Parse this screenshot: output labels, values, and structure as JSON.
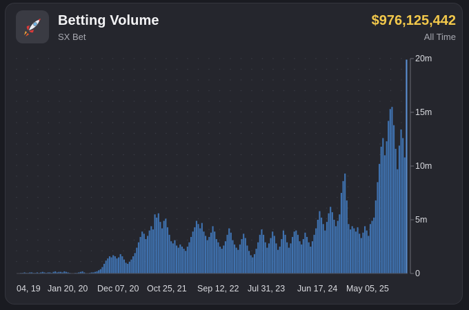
{
  "header": {
    "title": "Betting Volume",
    "subtitle": "SX Bet",
    "total": "$976,125,442",
    "period": "All Time",
    "logo_icon": "rocket-icon"
  },
  "colors": {
    "bar": "#3f72b0",
    "bar_highlight": "#5a8fd2",
    "accent": "#f2c84b"
  },
  "chart_data": {
    "type": "bar",
    "title": "Betting Volume",
    "ylabel": "",
    "xlabel": "",
    "ylim": [
      0,
      20000000
    ],
    "grid": "dotted",
    "y_ticks": [
      "0",
      "5m",
      "10m",
      "15m",
      "20m"
    ],
    "y_tick_values": [
      0,
      5000000,
      10000000,
      15000000,
      20000000
    ],
    "x_ticks": [
      "04, 19",
      "Jan 20, 20",
      "Dec 07, 20",
      "Oct 25, 21",
      "Sep 12, 22",
      "Jul 31, 23",
      "Jun 17, 24",
      "May 05, 25"
    ],
    "values": [
      0,
      0,
      0.05,
      0.05,
      0.1,
      0.05,
      0.05,
      0.1,
      0.1,
      0.05,
      0.05,
      0.1,
      0.05,
      0.1,
      0.15,
      0.1,
      0.05,
      0.1,
      0.1,
      0.05,
      0.15,
      0.2,
      0.1,
      0.15,
      0.15,
      0.1,
      0.2,
      0.15,
      0.1,
      0.05,
      0,
      0,
      0.05,
      0.05,
      0.1,
      0.15,
      0.2,
      0.1,
      0,
      0,
      0.05,
      0.1,
      0.1,
      0.15,
      0.2,
      0.3,
      0.4,
      0.6,
      0.9,
      1.2,
      1.4,
      1.6,
      1.5,
      1.7,
      1.6,
      1.4,
      1.5,
      1.8,
      1.6,
      1.3,
      1.0,
      0.9,
      1.1,
      1.3,
      1.6,
      1.9,
      2.4,
      2.9,
      3.4,
      3.9,
      3.7,
      3.2,
      3.5,
      4.0,
      4.4,
      4.1,
      5.5,
      5.2,
      5.6,
      4.8,
      4.2,
      4.9,
      5.1,
      4.3,
      3.6,
      3.0,
      2.8,
      3.1,
      2.6,
      2.4,
      2.7,
      2.5,
      2.3,
      2.1,
      2.5,
      2.9,
      3.4,
      3.9,
      4.3,
      4.9,
      4.6,
      4.2,
      4.7,
      3.9,
      3.5,
      3.1,
      3.4,
      3.8,
      4.4,
      3.9,
      3.2,
      2.9,
      2.5,
      2.3,
      2.6,
      3.0,
      3.6,
      4.2,
      3.8,
      3.1,
      2.7,
      2.4,
      2.2,
      2.7,
      3.2,
      3.7,
      3.3,
      2.6,
      2.1,
      1.7,
      1.5,
      1.8,
      2.3,
      2.9,
      3.6,
      4.1,
      3.6,
      2.9,
      2.4,
      2.8,
      3.3,
      3.9,
      3.5,
      2.8,
      2.2,
      2.5,
      3.2,
      4.0,
      3.6,
      2.9,
      2.4,
      2.8,
      3.4,
      3.9,
      4.0,
      3.6,
      3.0,
      2.7,
      3.2,
      3.8,
      3.4,
      2.9,
      2.5,
      3.0,
      3.6,
      4.2,
      5.0,
      5.8,
      5.2,
      4.6,
      4.0,
      4.8,
      5.6,
      6.2,
      5.7,
      5.0,
      4.4,
      4.9,
      5.5,
      7.5,
      8.6,
      9.3,
      6.8,
      4.6,
      4.1,
      4.4,
      4.2,
      3.9,
      4.3,
      3.7,
      3.3,
      3.8,
      4.4,
      4.0,
      3.5,
      4.6,
      4.9,
      5.2,
      6.8,
      8.5,
      10.2,
      11.8,
      12.6,
      11.0,
      12.3,
      14.2,
      15.3,
      15.5,
      13.8,
      11.6,
      9.7,
      11.9,
      13.4,
      12.6,
      10.8,
      19.9
    ]
  }
}
